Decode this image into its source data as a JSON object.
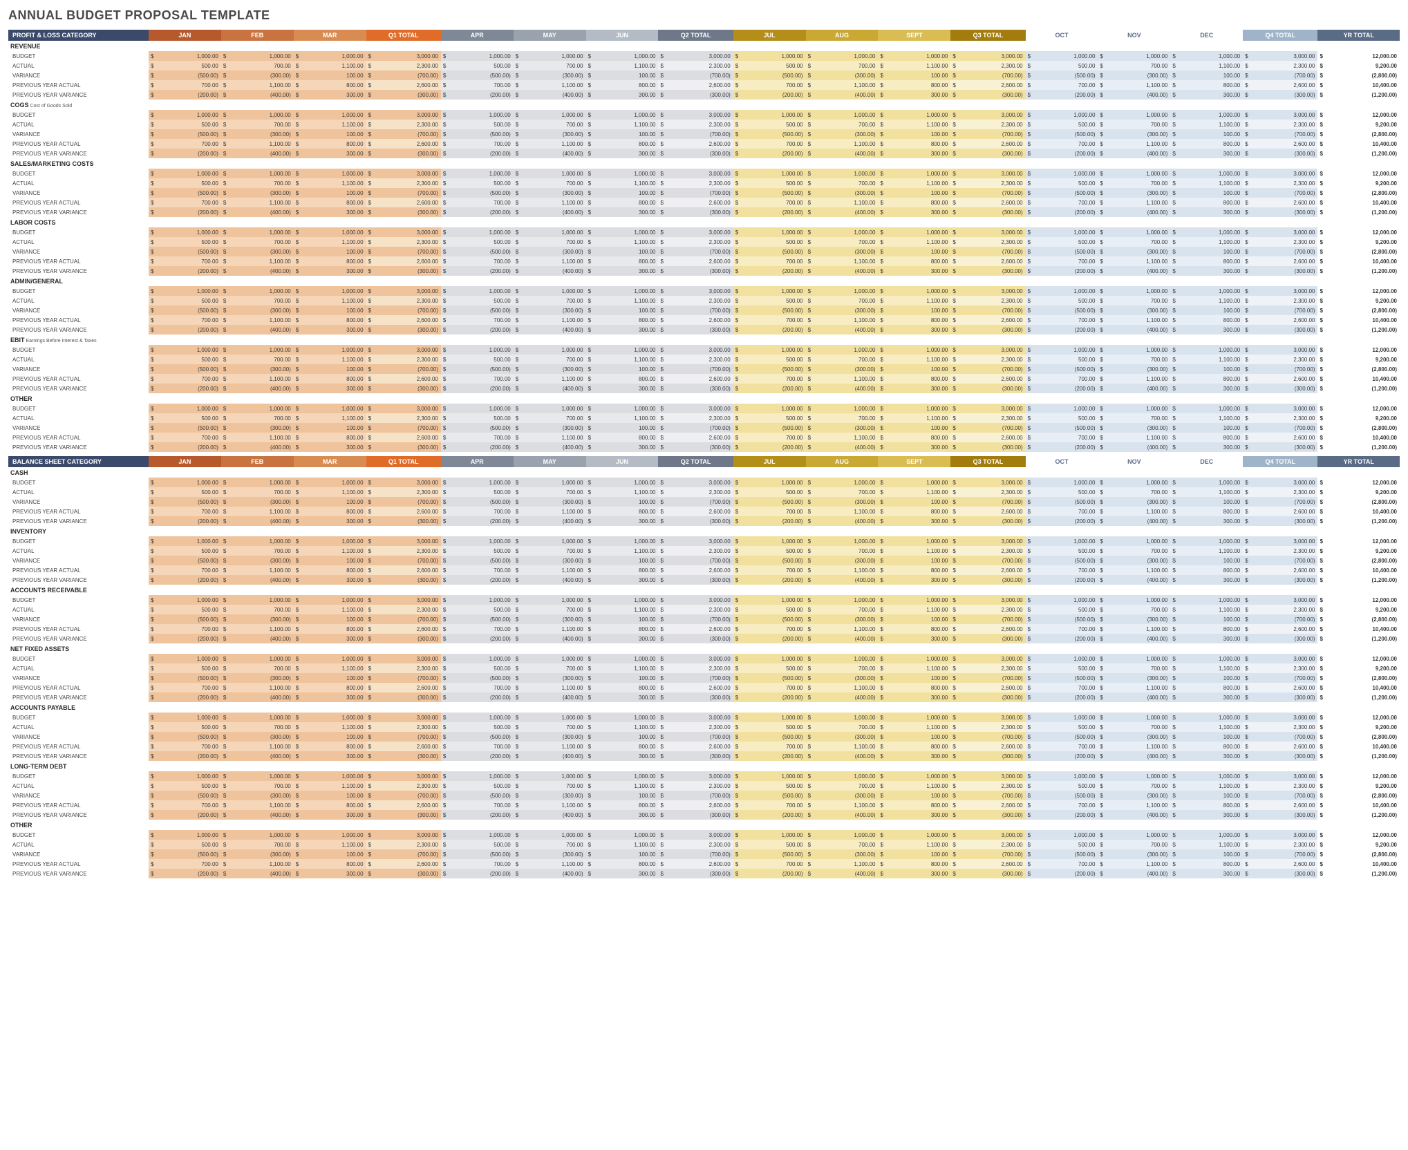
{
  "title": "ANNUAL BUDGET PROPOSAL TEMPLATE",
  "colors": {
    "cat_header": "#3b4a6b",
    "q1_m": [
      "#b65a2e",
      "#c97440",
      "#d98c52"
    ],
    "q1_t": "#e06c2a",
    "q2_m": [
      "#7f8896",
      "#9aa2ad",
      "#b4bbc4"
    ],
    "q2_t": "#6e7889",
    "q3_m": [
      "#b38f1a",
      "#c9a834",
      "#d9bc52"
    ],
    "q3_t": "#a37c0e",
    "q4_m": [
      "#ffffff",
      "#ffffff",
      "#ffffff"
    ],
    "q4_t": "#9fb4c8",
    "yr": "#5a6b85",
    "q1_cell_base": "#f5d6b8",
    "q1_cell_alt": "#efc39b",
    "q1_tot_cell": "#f6e2c6",
    "q2_cell_base": "#e8e9eb",
    "q2_cell_alt": "#dcdde1",
    "q2_tot_cell": "#efeff1",
    "q3_cell_base": "#f7ecc2",
    "q3_cell_alt": "#f2e19e",
    "q3_tot_cell": "#f9f1d4",
    "q4_cell_base": "#e8eef5",
    "q4_cell_alt": "#d9e3ed",
    "q4_tot_cell": "#eff3f8",
    "q4_header_text": "#5a6b85"
  },
  "months": [
    "JAN",
    "FEB",
    "MAR",
    "APR",
    "MAY",
    "JUN",
    "JUL",
    "AUG",
    "SEPT",
    "OCT",
    "NOV",
    "DEC"
  ],
  "q_totals": [
    "Q1 TOTAL",
    "Q2 TOTAL",
    "Q3 TOTAL",
    "Q4 TOTAL"
  ],
  "yr_total": "YR TOTAL",
  "row_labels": [
    "BUDGET",
    "ACTUAL",
    "VARIANCE",
    "PREVIOUS YEAR ACTUAL",
    "PREVIOUS YEAR VARIANCE"
  ],
  "row_patterns": {
    "BUDGET": {
      "m": [
        1000,
        1000,
        1000,
        1000,
        1000,
        1000,
        1000,
        1000,
        1000,
        1000,
        1000,
        1000
      ],
      "q": [
        3000,
        3000,
        3000,
        3000
      ],
      "yr": 12000
    },
    "ACTUAL": {
      "m": [
        500,
        700,
        1100,
        500,
        700,
        1100,
        500,
        700,
        1100,
        500,
        700,
        1100
      ],
      "q": [
        2300,
        2300,
        2300,
        2300
      ],
      "yr": 9200
    },
    "VARIANCE": {
      "m": [
        -500,
        -300,
        100,
        -500,
        -300,
        100,
        -500,
        -300,
        100,
        -500,
        -300,
        100
      ],
      "q": [
        -700,
        -700,
        -700,
        -700
      ],
      "yr": -2800
    },
    "PREVIOUS YEAR ACTUAL": {
      "m": [
        700,
        1100,
        800,
        700,
        1100,
        800,
        700,
        1100,
        800,
        700,
        1100,
        800
      ],
      "q": [
        2600,
        2600,
        2600,
        2600
      ],
      "yr": 10400
    },
    "PREVIOUS YEAR VARIANCE": {
      "m": [
        -200,
        -400,
        300,
        -200,
        -400,
        300,
        -200,
        -400,
        300,
        -200,
        -400,
        300
      ],
      "q": [
        -300,
        -300,
        -300,
        -300
      ],
      "yr": -1200
    }
  },
  "sections": [
    {
      "header": "PROFIT & LOSS CATEGORY",
      "groups": [
        {
          "name": "REVENUE"
        },
        {
          "name": "COGS",
          "sub": "Cost of Goods Sold"
        },
        {
          "name": "SALES/MARKETING COSTS"
        },
        {
          "name": "LABOR COSTS"
        },
        {
          "name": "ADMIN/GENERAL"
        },
        {
          "name": "EBIT",
          "sub": "Earnings Before Interest & Taxes"
        },
        {
          "name": "OTHER"
        }
      ]
    },
    {
      "header": "BALANCE SHEET CATEGORY",
      "groups": [
        {
          "name": "CASH"
        },
        {
          "name": "INVENTORY"
        },
        {
          "name": "ACCOUNTS RECEIVABLE"
        },
        {
          "name": "NET FIXED ASSETS"
        },
        {
          "name": "ACCOUNTS PAYABLE"
        },
        {
          "name": "LONG-TERM DEBT"
        },
        {
          "name": "OTHER"
        }
      ]
    }
  ]
}
